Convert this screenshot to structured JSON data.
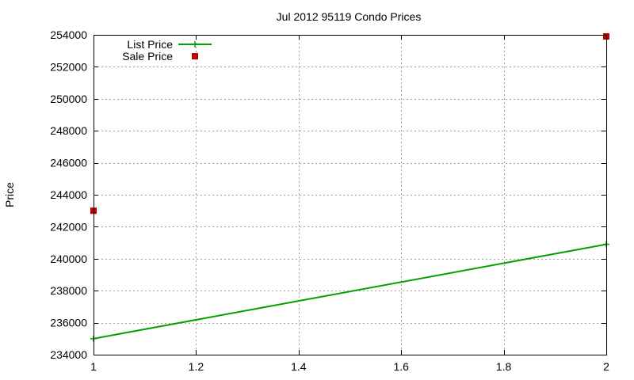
{
  "chart_data": {
    "type": "line",
    "title": "Jul 2012 95119 Condo Prices",
    "xlabel": "",
    "ylabel": "Price",
    "xlim": [
      1,
      2
    ],
    "ylim": [
      234000,
      254000
    ],
    "x_ticks": [
      1,
      1.2,
      1.4,
      1.6,
      1.8,
      2
    ],
    "x_tick_labels": [
      "1",
      "1.2",
      "1.4",
      "1.6",
      "1.8",
      "2"
    ],
    "y_ticks": [
      234000,
      236000,
      238000,
      240000,
      242000,
      244000,
      246000,
      248000,
      250000,
      252000,
      254000
    ],
    "y_tick_labels": [
      "234000",
      "236000",
      "238000",
      "240000",
      "242000",
      "244000",
      "246000",
      "248000",
      "250000",
      "252000",
      "254000"
    ],
    "grid": true,
    "legend_position": "top-left",
    "series": [
      {
        "name": "List Price",
        "kind": "line-with-points",
        "color": "#00a000",
        "x": [
          1,
          2
        ],
        "y": [
          235000,
          240900
        ]
      },
      {
        "name": "Sale Price",
        "kind": "points",
        "color": "#c00000",
        "x": [
          1,
          2
        ],
        "y": [
          243000,
          253900
        ]
      }
    ]
  }
}
